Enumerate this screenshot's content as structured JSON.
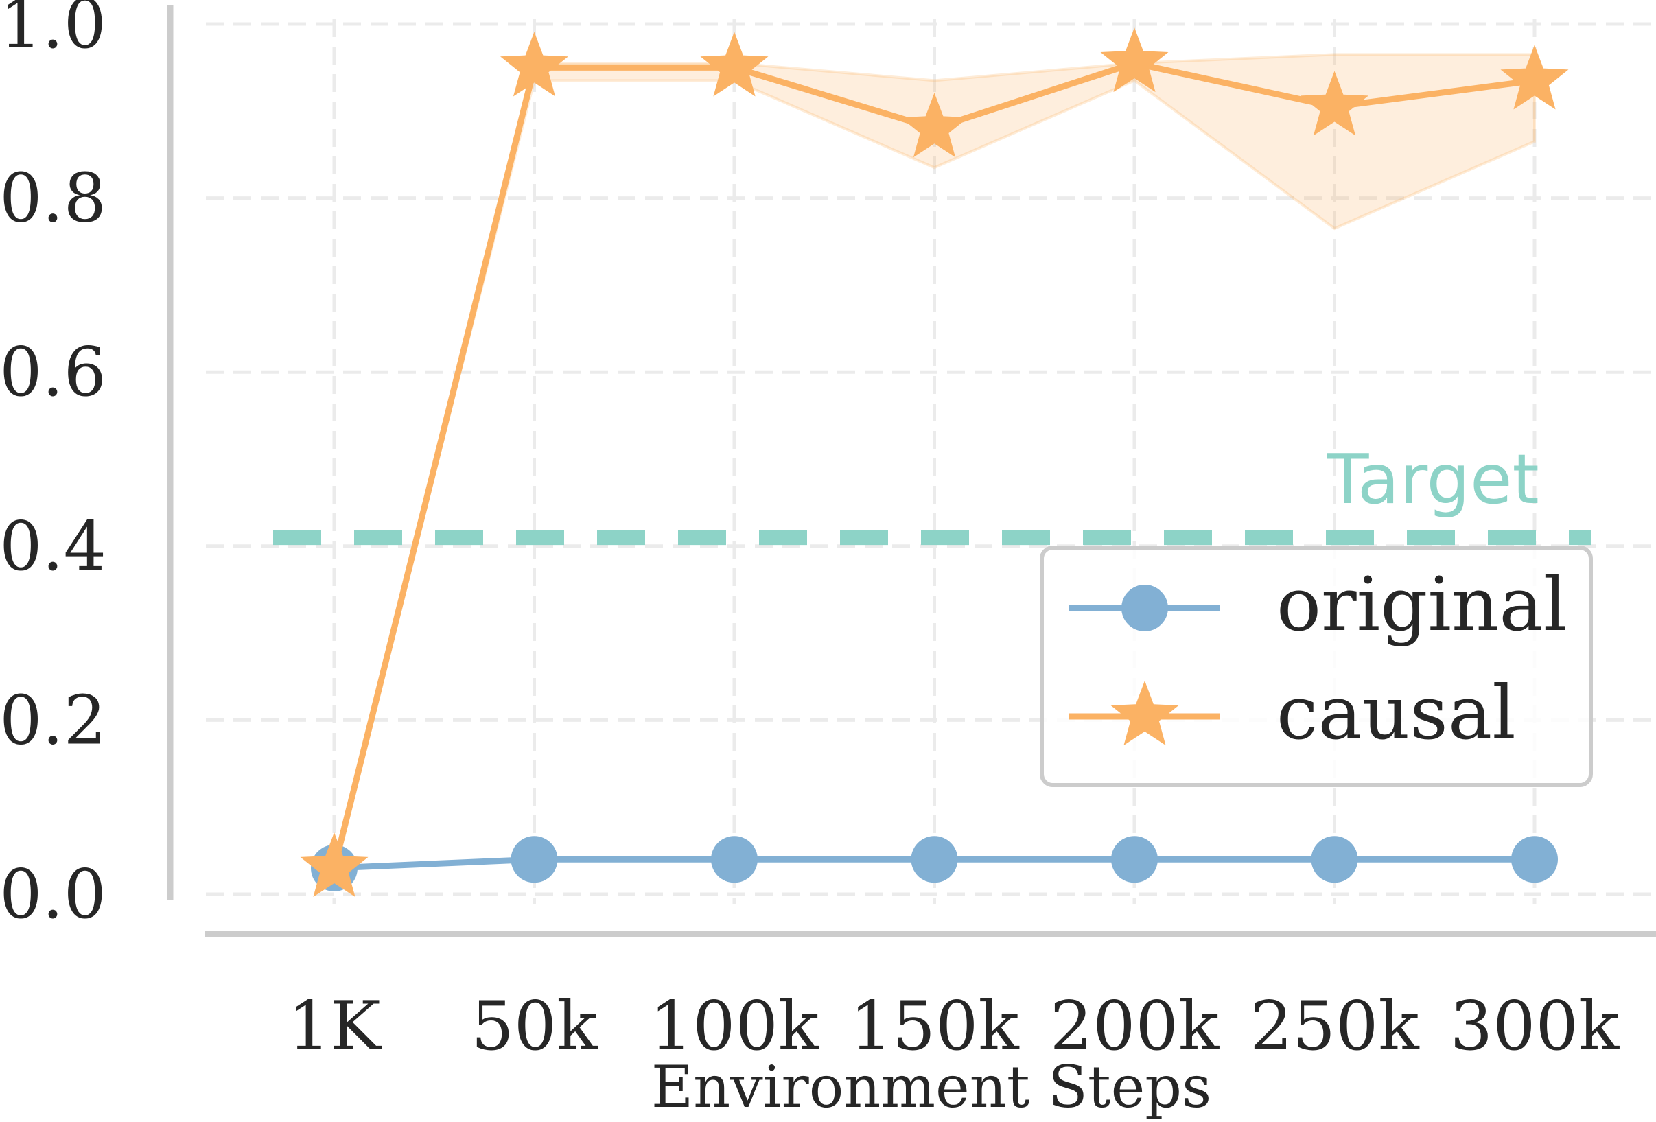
{
  "chart_data": {
    "type": "line",
    "title": "",
    "xlabel": "Environment Steps",
    "ylabel": "",
    "categories": [
      "1K",
      "50k",
      "100k",
      "150k",
      "200k",
      "250k",
      "300k"
    ],
    "ylim": [
      0,
      1.0
    ],
    "yticks": [
      "0.0",
      "0.2",
      "0.4",
      "0.6",
      "0.8",
      "1.0"
    ],
    "ytick_values": [
      0.0,
      0.2,
      0.4,
      0.6,
      0.8,
      1.0
    ],
    "grid": true,
    "legend_position": "center-right",
    "series": [
      {
        "name": "original",
        "marker": "circle",
        "color": "#82b0d4",
        "values": [
          0.03,
          0.04,
          0.04,
          0.04,
          0.04,
          0.04,
          0.04
        ]
      },
      {
        "name": "causal",
        "marker": "star",
        "color": "#fbb264",
        "values": [
          0.03,
          0.95,
          0.95,
          0.88,
          0.955,
          0.905,
          0.935
        ],
        "band_lower": [
          0.03,
          0.935,
          0.935,
          0.835,
          0.935,
          0.765,
          0.865
        ],
        "band_upper": [
          0.03,
          0.955,
          0.955,
          0.935,
          0.955,
          0.965,
          0.965
        ]
      }
    ],
    "reference_line": {
      "label": "Target",
      "value": 0.41,
      "color": "#8dd3c7",
      "style": "dashed"
    }
  }
}
